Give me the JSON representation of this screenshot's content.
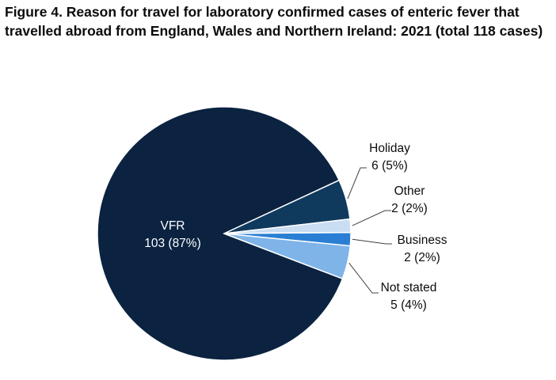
{
  "figure": {
    "title": "Figure 4. Reason for travel for laboratory confirmed cases of enteric fever that travelled abroad from England, Wales and Northern Ireland: 2021 (total 118 cases)"
  },
  "chart_data": {
    "type": "pie",
    "title": "Figure 4. Reason for travel for laboratory confirmed cases of enteric fever that travelled abroad from England, Wales and Northern Ireland: 2021 (total 118 cases)",
    "total": 118,
    "slices": [
      {
        "label": "VFR",
        "value": 103,
        "value_label": "103 (87%)",
        "color": "#0b2341",
        "text_color": "#ffffff"
      },
      {
        "label": "Holiday",
        "value": 6,
        "value_label": "6 (5%)",
        "color": "#0f3a5e",
        "text_color": "#0b0c0c"
      },
      {
        "label": "Other",
        "value": 2,
        "value_label": "2 (2%)",
        "color": "#c9ddf3",
        "text_color": "#0b0c0c"
      },
      {
        "label": "Business",
        "value": 2,
        "value_label": "2 (2%)",
        "color": "#2a7fd4",
        "text_color": "#0b0c0c"
      },
      {
        "label": "Not stated",
        "value": 5,
        "value_label": "5 (4%)",
        "color": "#7eb4e8",
        "text_color": "#0b0c0c"
      }
    ],
    "legend": "none"
  }
}
